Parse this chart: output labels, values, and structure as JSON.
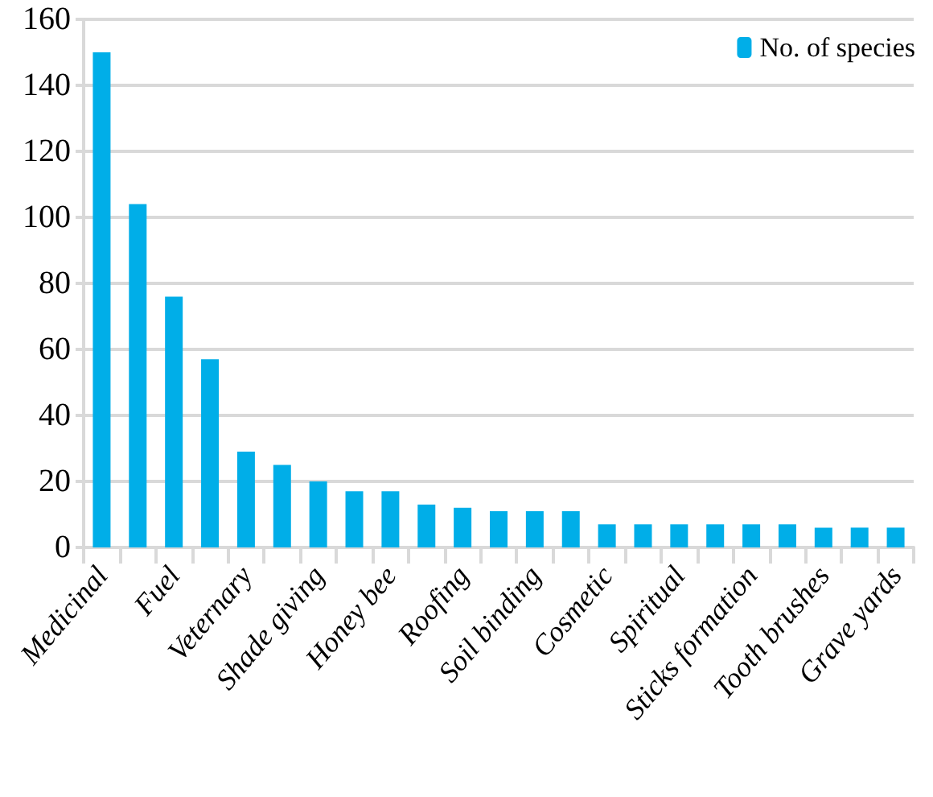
{
  "chart_data": {
    "type": "bar",
    "categories": [
      "Medicinal",
      null,
      "Fuel",
      null,
      "Veternary",
      null,
      "Shade giving",
      null,
      "Honey bee",
      null,
      "Roofing",
      null,
      "Soil binding",
      null,
      "Cosmetic",
      null,
      "Spiritual",
      null,
      "Sticks formation",
      null,
      "Tooth brushes",
      null,
      "Grave yards"
    ],
    "series": [
      {
        "name": "No. of species",
        "color": "#00aee8",
        "values": [
          150,
          104,
          76,
          57,
          29,
          25,
          20,
          17,
          17,
          13,
          12,
          11,
          11,
          11,
          7,
          7,
          7,
          7,
          7,
          7,
          6,
          6,
          6
        ]
      }
    ],
    "ylim": [
      0,
      160
    ],
    "yticks": [
      0,
      20,
      40,
      60,
      80,
      100,
      120,
      140,
      160
    ],
    "grid": "y",
    "legend": "top right"
  }
}
